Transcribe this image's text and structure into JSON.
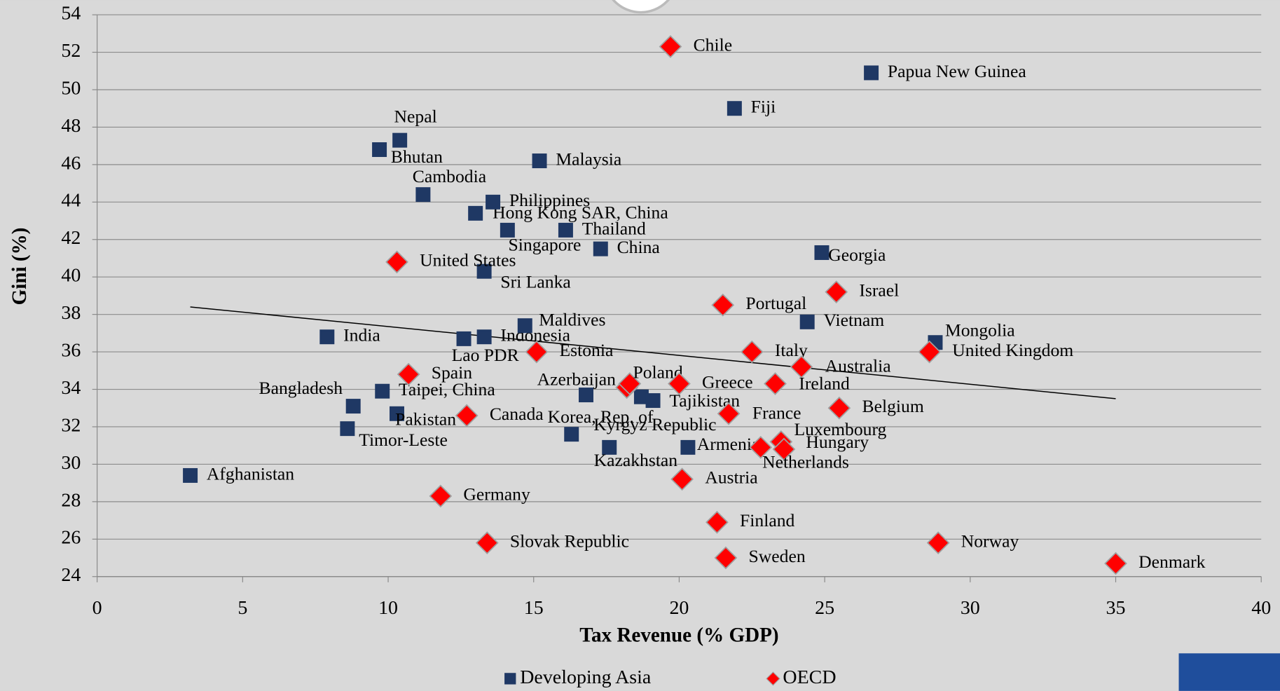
{
  "chart_data": {
    "type": "scatter",
    "x_label": "Tax Revenue (% GDP)",
    "y_label": "Gini (%)",
    "xlim": [
      0,
      40
    ],
    "xticks": [
      0,
      5,
      10,
      15,
      20,
      25,
      30,
      35,
      40
    ],
    "ylim": [
      24,
      54
    ],
    "yticks": [
      24,
      26,
      28,
      30,
      32,
      34,
      36,
      38,
      40,
      42,
      44,
      46,
      48,
      50,
      52,
      54
    ],
    "grid": true,
    "legend": "bottom",
    "series": [
      {
        "name": "Developing Asia",
        "color": "#1f3864",
        "marker": "square",
        "x": [
          3.2,
          7.9,
          8.8,
          8.6,
          9.7,
          10.4,
          9.8,
          10.3,
          11.2,
          13.0,
          13.6,
          14.1,
          13.3,
          12.6,
          13.3,
          14.7,
          15.2,
          16.1,
          17.3,
          16.3,
          17.6,
          16.8,
          18.7,
          19.1,
          20.3,
          24.9,
          24.4,
          21.9,
          26.6,
          28.8
        ],
        "values": [
          29.4,
          36.8,
          33.1,
          31.9,
          46.8,
          47.3,
          33.9,
          32.7,
          44.4,
          43.4,
          44.0,
          42.5,
          40.3,
          36.7,
          36.8,
          37.4,
          46.2,
          42.5,
          41.5,
          31.6,
          30.9,
          33.7,
          33.6,
          33.4,
          30.9,
          41.3,
          37.6,
          49.0,
          50.9,
          36.5
        ],
        "labels": [
          "Afghanistan",
          "India",
          "Bangladesh",
          "Timor-Leste",
          "Bhutan",
          "Nepal",
          "Taipei, China",
          "Pakistan",
          "Cambodia",
          "Hong Kong SAR, China",
          "Philippines",
          "Singapore",
          "Sri Lanka",
          "Lao PDR",
          "Indonesia",
          "Maldives",
          "Malaysia",
          "Thailand",
          "China",
          "Kyrgyz Republic",
          "Kazakhstan",
          "Azerbaijan",
          null,
          "Tajikistan",
          "Armenia",
          "Georgia",
          "Vietnam",
          "Fiji",
          "Papua New Guinea",
          "Mongolia"
        ]
      },
      {
        "name": "OECD",
        "color": "#ff0000",
        "marker": "diamond",
        "x": [
          19.7,
          10.3,
          10.7,
          12.7,
          15.1,
          11.8,
          13.4,
          18.2,
          18.3,
          20.0,
          21.5,
          22.5,
          24.2,
          23.3,
          21.7,
          25.4,
          25.5,
          23.5,
          23.6,
          22.8,
          20.1,
          21.3,
          21.6,
          28.9,
          35.0,
          28.6
        ],
        "values": [
          52.3,
          40.8,
          34.8,
          32.6,
          36.0,
          28.3,
          25.8,
          34.1,
          34.3,
          34.3,
          38.5,
          36.0,
          35.2,
          34.3,
          32.7,
          39.2,
          33.0,
          31.2,
          30.8,
          30.9,
          29.2,
          26.9,
          25.0,
          25.8,
          24.7,
          36.0
        ],
        "labels": [
          "Chile",
          "United States",
          "Spain",
          "Canada",
          "Estonia",
          "Germany",
          "Slovak Republic",
          "Korea, Rep. of",
          "Poland",
          "Greece",
          "Portugal",
          "Italy",
          "Australia",
          "Ireland",
          "France",
          "Israel",
          "Belgium",
          "Luxembourg",
          "Hungary",
          "Netherlands",
          "Austria",
          "Finland",
          "Sweden",
          "Norway",
          "Denmark",
          "United Kingdom"
        ]
      }
    ],
    "trendline": {
      "x": [
        3.2,
        35.0
      ],
      "y": [
        38.4,
        33.5
      ]
    }
  }
}
